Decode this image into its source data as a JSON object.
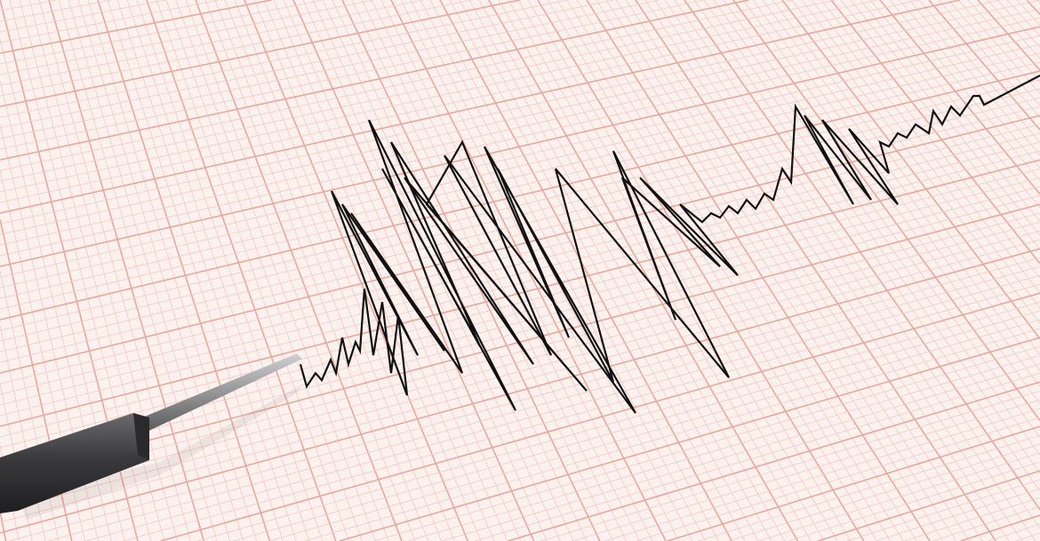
{
  "colors": {
    "paper": "#fbf1ee",
    "grid_minor": "#f2c9c0",
    "grid_major": "#eaa79a",
    "trace": "#111111",
    "stylus_body": "#3e3e40",
    "stylus_needle": "#8a8a8c"
  },
  "icons": {
    "stylus": "seismograph-stylus-icon"
  }
}
